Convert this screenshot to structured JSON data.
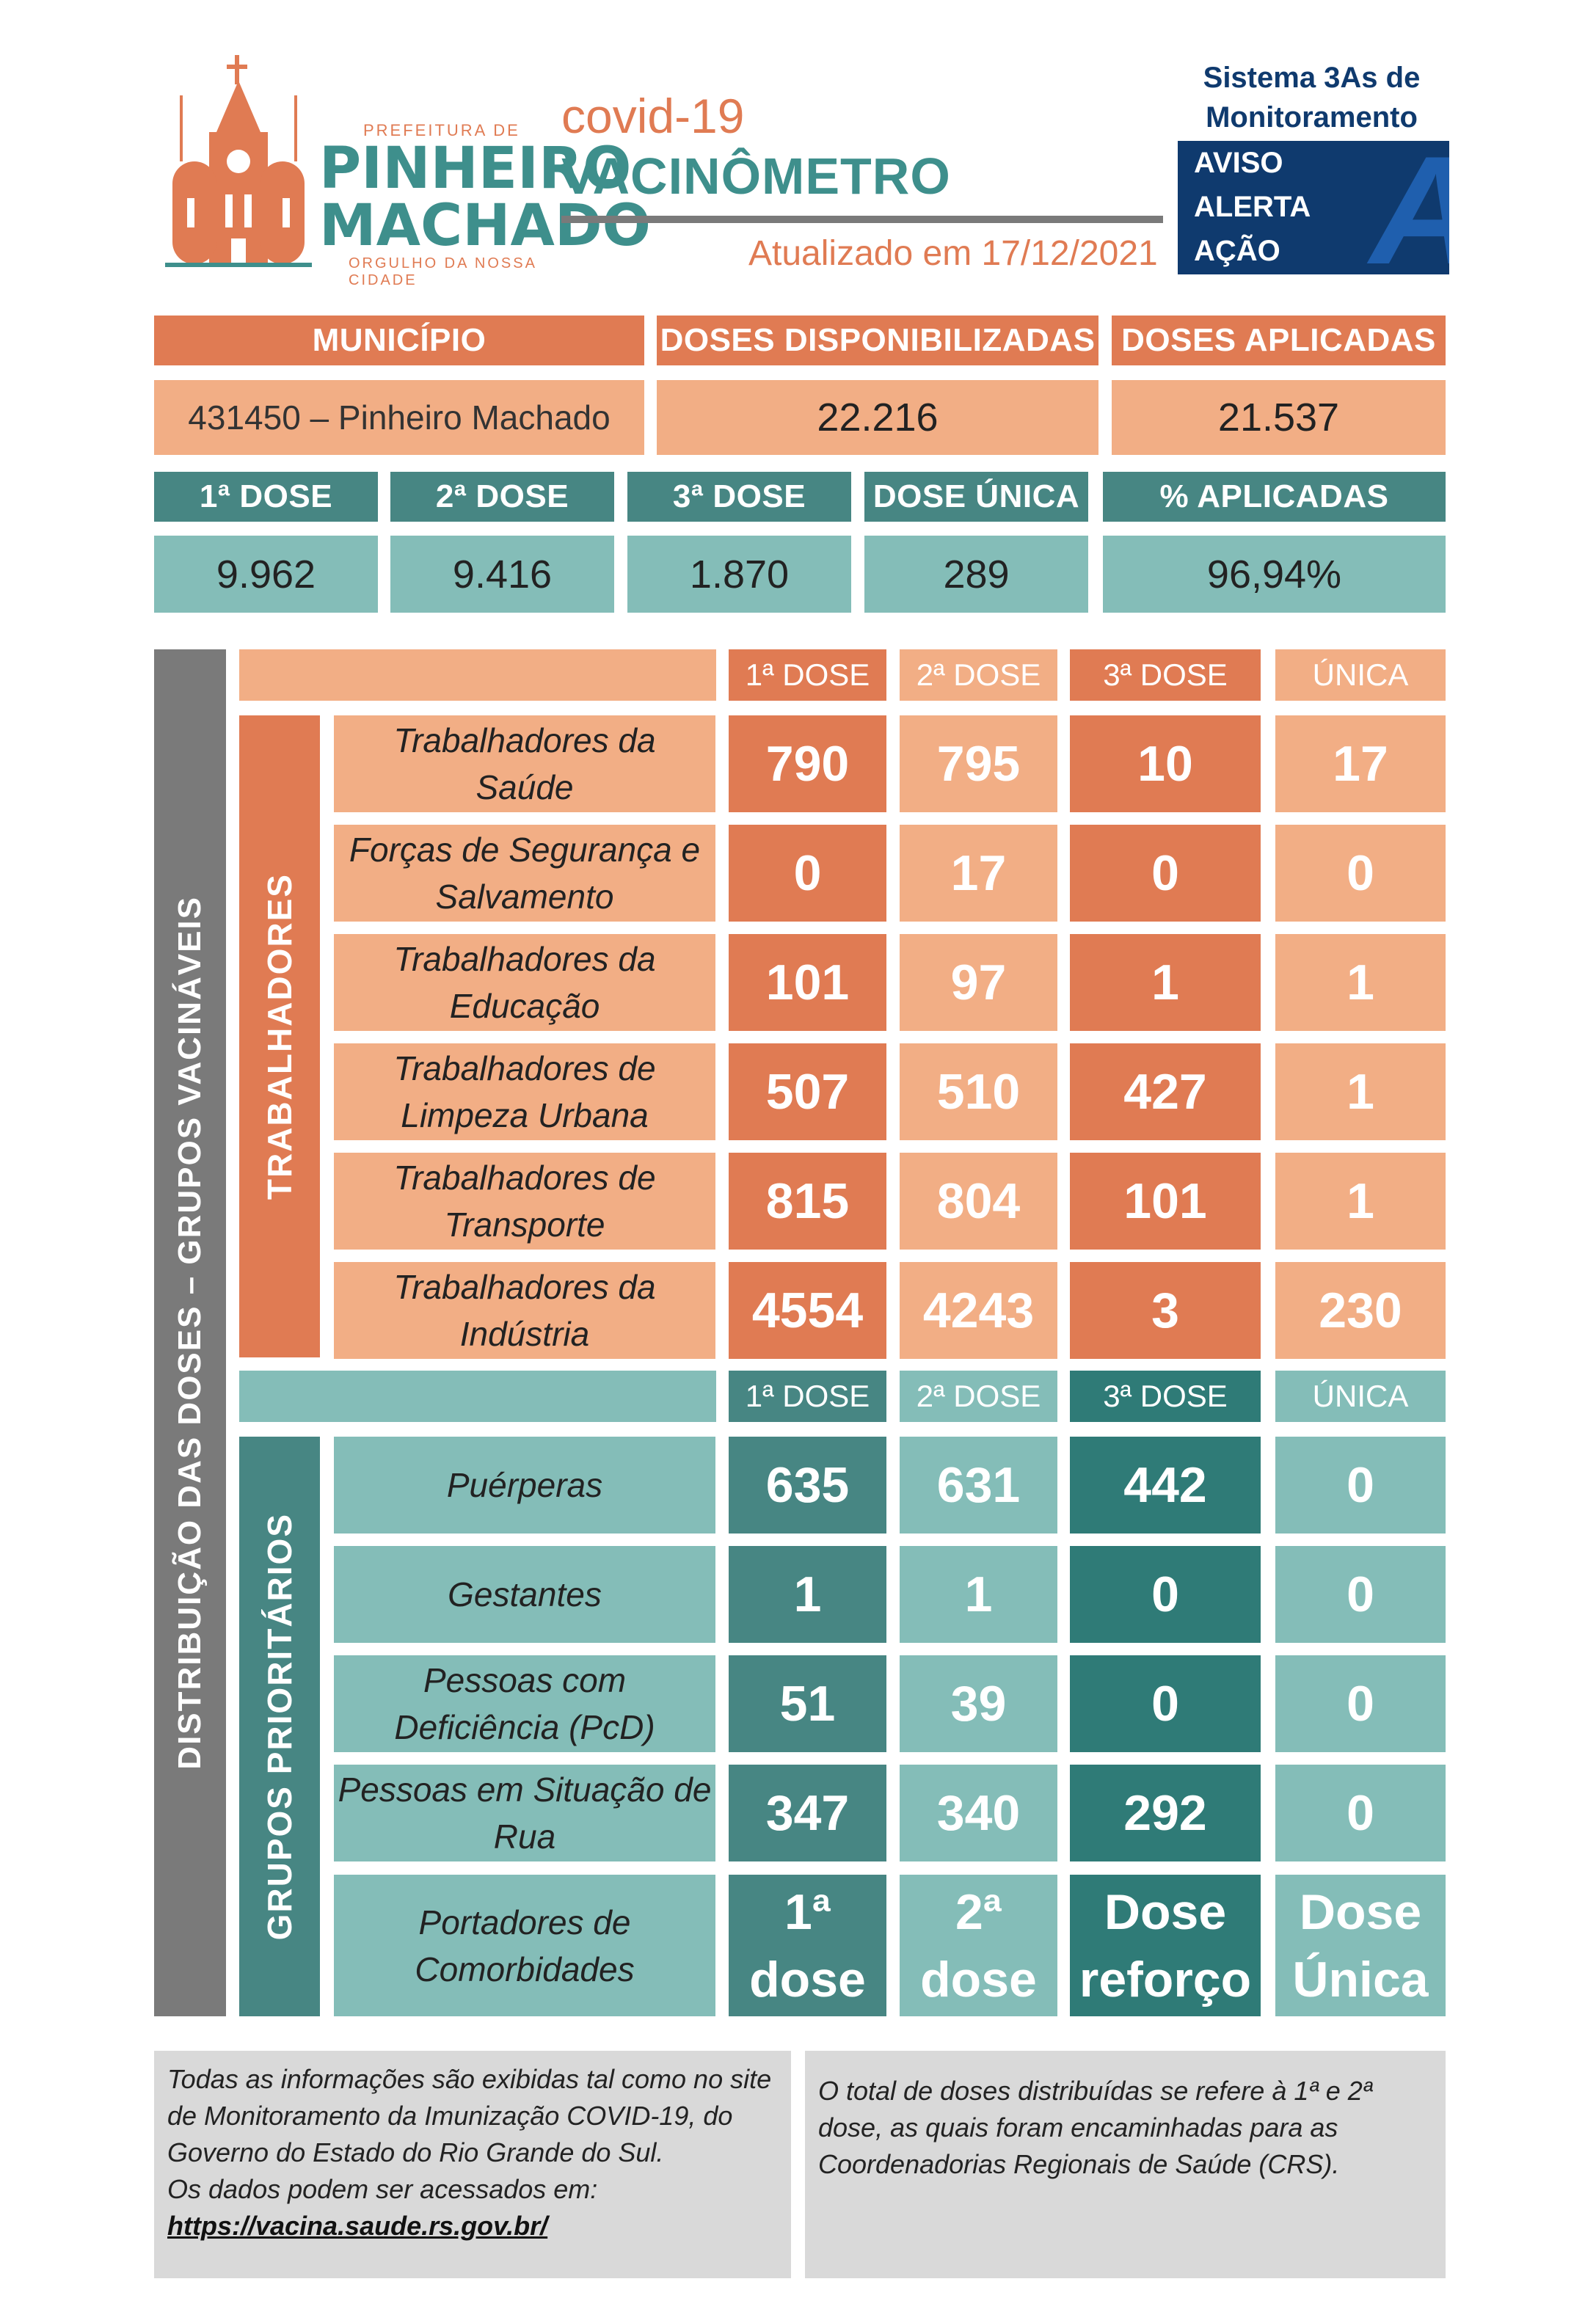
{
  "header": {
    "logo": {
      "small_top": "PREFEITURA DE",
      "line1": "PINHEIRO",
      "line2": "MACHADO",
      "small_bottom": "ORGULHO DA NOSSA CIDADE"
    },
    "title_small": "covid-19",
    "title_big": "VACINÔMETRO",
    "updated": "Atualizado em 17/12/2021",
    "system": {
      "title_line1": "Sistema 3As de",
      "title_line2": "Monitoramento",
      "items": [
        "AVISO",
        "ALERTA",
        "AÇÃO"
      ],
      "badge": "A"
    }
  },
  "summary": {
    "municipio_label": "MUNICÍPIO",
    "disponibilizadas_label": "DOSES DISPONIBILIZADAS",
    "aplicadas_label": "DOSES APLICADAS",
    "municipio_value": "431450 – Pinheiro Machado",
    "disponibilizadas_value": "22.216",
    "aplicadas_value": "21.537",
    "dose_labels": [
      "1ª DOSE",
      "2ª DOSE",
      "3ª DOSE",
      "DOSE ÚNICA",
      "% APLICADAS"
    ],
    "dose_values": [
      "9.962",
      "9.416",
      "1.870",
      "289",
      "96,94%"
    ]
  },
  "distribution": {
    "side_label": "DISTRIBUIÇÃO DAS DOSES – GRUPOS VACINÁVEIS",
    "trabalhadores": {
      "label": "TRABALHADORES",
      "columns": [
        "1ª DOSE",
        "2ª DOSE",
        "3ª DOSE",
        "ÚNICA"
      ],
      "rows": [
        {
          "line1": "Trabalhadores da",
          "line2": "Saúde",
          "values": [
            "790",
            "795",
            "10",
            "17"
          ]
        },
        {
          "line1": "Forças de Segurança e",
          "line2": "Salvamento",
          "values": [
            "0",
            "17",
            "0",
            "0"
          ]
        },
        {
          "line1": "Trabalhadores da",
          "line2": "Educação",
          "values": [
            "101",
            "97",
            "1",
            "1"
          ]
        },
        {
          "line1": "Trabalhadores de",
          "line2": "Limpeza Urbana",
          "values": [
            "507",
            "510",
            "427",
            "1"
          ]
        },
        {
          "line1": "Trabalhadores de",
          "line2": "Transporte",
          "values": [
            "815",
            "804",
            "101",
            "1"
          ]
        },
        {
          "line1": "Trabalhadores da",
          "line2": "Indústria",
          "values": [
            "4554",
            "4243",
            "3",
            "230"
          ]
        }
      ]
    },
    "prioritarios": {
      "label": "GRUPOS PRIORITÁRIOS",
      "columns": [
        "1ª DOSE",
        "2ª DOSE",
        "3ª DOSE",
        "ÚNICA"
      ],
      "rows": [
        {
          "line1": "Puérperas",
          "line2": "",
          "values": [
            "635",
            "631",
            "442",
            "0"
          ]
        },
        {
          "line1": "Gestantes",
          "line2": "",
          "values": [
            "1",
            "1",
            "0",
            "0"
          ]
        },
        {
          "line1": "Pessoas com",
          "line2": "Deficiência (PcD)",
          "values": [
            "51",
            "39",
            "0",
            "0"
          ]
        },
        {
          "line1": "Pessoas em Situação de",
          "line2": "Rua",
          "values": [
            "347",
            "340",
            "292",
            "0"
          ]
        }
      ],
      "comorbidades": {
        "line1": "Portadores de",
        "line2": "Comorbidades",
        "cells": [
          {
            "l1": "1ª",
            "l2": "dose"
          },
          {
            "l1": "2ª",
            "l2": "dose"
          },
          {
            "l1": "Dose",
            "l2": "reforço"
          },
          {
            "l1": "Dose",
            "l2": "Única"
          }
        ]
      }
    }
  },
  "footer": {
    "left": {
      "lines": [
        "Todas as informações são exibidas tal como no site",
        "de Monitoramento da Imunização COVID-19, do",
        "Governo do Estado do Rio Grande do Sul.",
        "Os dados podem ser acessados em:"
      ],
      "link": "https://vacina.saude.rs.gov.br/"
    },
    "right": {
      "lines": [
        "O total de doses distribuídas se refere à 1ª e 2ª",
        "dose, as quais foram encaminhadas para as",
        "Coordenadorias Regionais de Saúde (CRS)."
      ]
    }
  },
  "colors": {
    "dark_orange": "#e07b53",
    "light_orange": "#f2ae85",
    "dark_teal": "#478683",
    "light_teal": "#84bdb8",
    "navy": "#0f3a6e",
    "title_orange": "#e07b53",
    "title_teal": "#3e8f8c"
  }
}
